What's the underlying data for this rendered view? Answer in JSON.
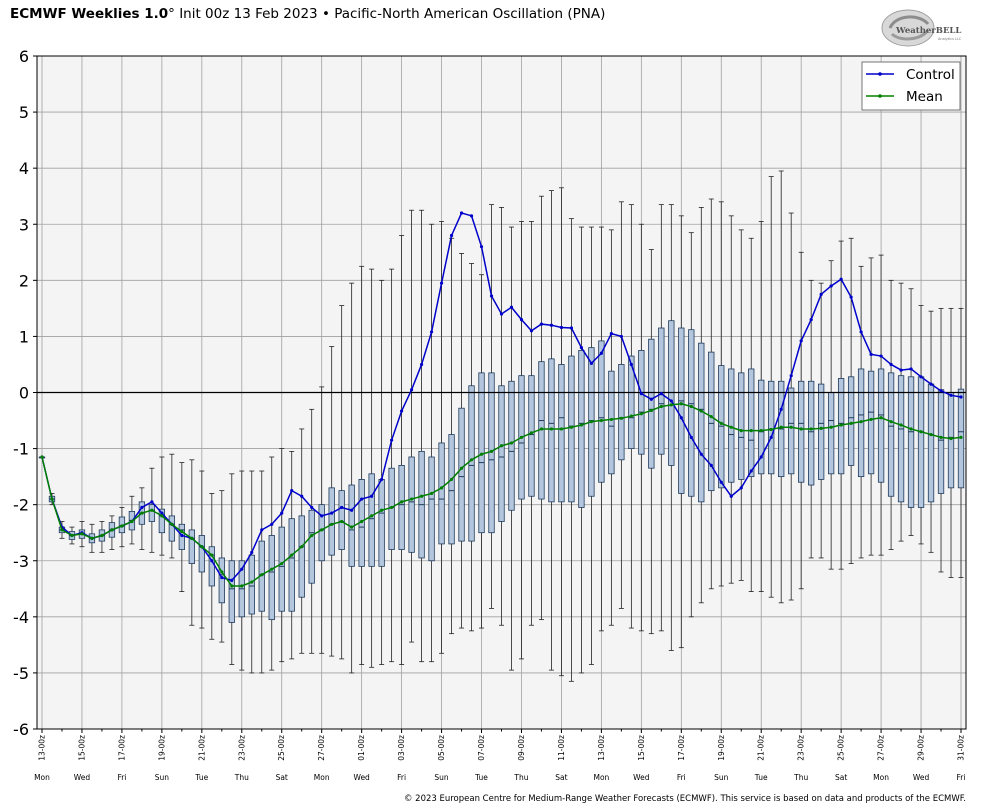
{
  "header": {
    "model": "ECMWF Weeklies 1.0",
    "degree": "°",
    "init": "Init 00z 13 Feb 2023",
    "bullet": "•",
    "index": "Pacific-North American Oscillation (PNA)"
  },
  "logo": {
    "text": "WeatherBELL",
    "subtext": "Analytics LLC"
  },
  "footer": "© 2023 European Centre for Medium-Range Weather Forecasts (ECMWF). This service is based on data and products of the ECMWF.",
  "colors": {
    "control": "#0000cc",
    "mean": "#008000",
    "box_fill": "#b3c6de",
    "box_edge": "#1f3b5c",
    "plot_bg": "#f4f4f4",
    "grid": "#a0a0a0"
  },
  "chart_data": {
    "type": "box",
    "title": "",
    "ylim": [
      -6,
      6
    ],
    "yticks": [
      "6",
      "5",
      "4",
      "3",
      "2",
      "1",
      "0",
      "-1",
      "-2",
      "-3",
      "-4",
      "-5",
      "-6"
    ],
    "zero_line": true,
    "grid": true,
    "legend_position": "top-right",
    "xlim": [
      0,
      92
    ],
    "x_date_labels": [
      "13-00z",
      "15-00z",
      "17-00z",
      "19-00z",
      "21-00z",
      "23-00z",
      "25-00z",
      "27-00z",
      "01-00z",
      "03-00z",
      "05-00z",
      "07-00z",
      "09-00z",
      "11-00z",
      "13-00z",
      "15-00z",
      "17-00z",
      "19-00z",
      "21-00z",
      "23-00z",
      "25-00z",
      "27-00z",
      "29-00z",
      "31-00z"
    ],
    "x_day_labels": [
      "Mon",
      "Wed",
      "Fri",
      "Sun",
      "Tue",
      "Thu",
      "Sat",
      "Mon",
      "Wed",
      "Fri",
      "Sun",
      "Tue",
      "Thu",
      "Sat",
      "Mon",
      "Wed",
      "Fri",
      "Sun",
      "Tue",
      "Thu",
      "Sat",
      "Mon",
      "Wed",
      "Fri"
    ],
    "series": [
      {
        "name": "Control",
        "x": [
          0,
          1,
          2,
          3,
          4,
          5,
          6,
          7,
          8,
          9,
          10,
          11,
          12,
          13,
          14,
          15,
          16,
          17,
          18,
          19,
          20,
          21,
          22,
          23,
          24,
          25,
          26,
          27,
          28,
          29,
          30,
          31,
          32,
          33,
          34,
          35,
          36,
          37,
          38,
          39,
          40,
          41,
          42,
          43,
          44,
          45,
          46,
          47,
          48,
          49,
          50,
          51,
          52,
          53,
          54,
          55,
          56,
          57,
          58,
          59,
          60,
          61,
          62,
          63,
          64,
          65,
          66,
          67,
          68,
          69,
          70,
          71,
          72,
          73,
          74,
          75,
          76,
          77,
          78,
          79,
          80,
          81,
          82,
          83,
          84,
          85,
          86,
          87,
          88,
          89,
          90,
          91,
          92
        ],
        "values": [
          -1.15,
          -1.9,
          -2.4,
          -2.55,
          -2.5,
          -2.6,
          -2.55,
          -2.45,
          -2.38,
          -2.3,
          -2.05,
          -1.95,
          -2.15,
          -2.35,
          -2.55,
          -2.6,
          -2.75,
          -3.0,
          -3.3,
          -3.35,
          -3.15,
          -2.85,
          -2.45,
          -2.35,
          -2.15,
          -1.75,
          -1.85,
          -2.05,
          -2.2,
          -2.15,
          -2.05,
          -2.1,
          -1.9,
          -1.85,
          -1.55,
          -0.85,
          -0.33,
          0.05,
          0.5,
          1.08,
          1.95,
          2.8,
          3.2,
          3.15,
          2.6,
          1.72,
          1.4,
          1.52,
          1.3,
          1.1,
          1.22,
          1.2,
          1.16,
          1.15,
          0.8,
          0.52,
          0.7,
          1.05,
          1.0,
          0.5,
          -0.02,
          -0.12,
          -0.02,
          -0.15,
          -0.45,
          -0.8,
          -1.1,
          -1.3,
          -1.6,
          -1.85,
          -1.7,
          -1.4,
          -1.15,
          -0.8,
          -0.3,
          0.3,
          0.92,
          1.3,
          1.75,
          1.9,
          2.02,
          1.7,
          1.08,
          0.68,
          0.65,
          0.5,
          0.4,
          0.42,
          0.28,
          0.15,
          0.03,
          -0.05,
          -0.08
        ]
      },
      {
        "name": "Mean",
        "x": [
          0,
          1,
          2,
          3,
          4,
          5,
          6,
          7,
          8,
          9,
          10,
          11,
          12,
          13,
          14,
          15,
          16,
          17,
          18,
          19,
          20,
          21,
          22,
          23,
          24,
          25,
          26,
          27,
          28,
          29,
          30,
          31,
          32,
          33,
          34,
          35,
          36,
          37,
          38,
          39,
          40,
          41,
          42,
          43,
          44,
          45,
          46,
          47,
          48,
          49,
          50,
          51,
          52,
          53,
          54,
          55,
          56,
          57,
          58,
          59,
          60,
          61,
          62,
          63,
          64,
          65,
          66,
          67,
          68,
          69,
          70,
          71,
          72,
          73,
          74,
          75,
          76,
          77,
          78,
          79,
          80,
          81,
          82,
          83,
          84,
          85,
          86,
          87,
          88,
          89,
          90,
          91,
          92
        ],
        "values": [
          -1.15,
          -1.9,
          -2.45,
          -2.55,
          -2.52,
          -2.6,
          -2.55,
          -2.45,
          -2.38,
          -2.3,
          -2.15,
          -2.1,
          -2.2,
          -2.35,
          -2.48,
          -2.6,
          -2.75,
          -2.9,
          -3.2,
          -3.45,
          -3.45,
          -3.38,
          -3.25,
          -3.15,
          -3.05,
          -2.9,
          -2.75,
          -2.55,
          -2.45,
          -2.35,
          -2.3,
          -2.4,
          -2.3,
          -2.2,
          -2.1,
          -2.05,
          -1.95,
          -1.9,
          -1.85,
          -1.8,
          -1.7,
          -1.55,
          -1.35,
          -1.2,
          -1.1,
          -1.05,
          -0.95,
          -0.9,
          -0.8,
          -0.72,
          -0.65,
          -0.65,
          -0.65,
          -0.62,
          -0.58,
          -0.52,
          -0.5,
          -0.48,
          -0.46,
          -0.42,
          -0.38,
          -0.32,
          -0.25,
          -0.22,
          -0.2,
          -0.25,
          -0.33,
          -0.43,
          -0.55,
          -0.62,
          -0.68,
          -0.68,
          -0.68,
          -0.66,
          -0.62,
          -0.62,
          -0.65,
          -0.65,
          -0.64,
          -0.62,
          -0.58,
          -0.55,
          -0.52,
          -0.48,
          -0.45,
          -0.52,
          -0.58,
          -0.65,
          -0.7,
          -0.75,
          -0.8,
          -0.82,
          -0.8
        ]
      }
    ],
    "boxes": {
      "x": [
        0,
        1,
        2,
        3,
        4,
        5,
        6,
        7,
        8,
        9,
        10,
        11,
        12,
        13,
        14,
        15,
        16,
        17,
        18,
        19,
        20,
        21,
        22,
        23,
        24,
        25,
        26,
        27,
        28,
        29,
        30,
        31,
        32,
        33,
        34,
        35,
        36,
        37,
        38,
        39,
        40,
        41,
        42,
        43,
        44,
        45,
        46,
        47,
        48,
        49,
        50,
        51,
        52,
        53,
        54,
        55,
        56,
        57,
        58,
        59,
        60,
        61,
        62,
        63,
        64,
        65,
        66,
        67,
        68,
        69,
        70,
        71,
        72,
        73,
        74,
        75,
        76,
        77,
        78,
        79,
        80,
        81,
        82,
        83,
        84,
        85,
        86,
        87,
        88,
        89,
        90,
        91,
        92
      ],
      "q1": [
        -1.15,
        -1.95,
        -2.5,
        -2.62,
        -2.6,
        -2.68,
        -2.65,
        -2.58,
        -2.5,
        -2.45,
        -2.35,
        -2.3,
        -2.5,
        -2.65,
        -2.8,
        -3.05,
        -3.2,
        -3.45,
        -3.75,
        -4.1,
        -4.0,
        -3.95,
        -3.9,
        -4.05,
        -3.9,
        -3.9,
        -3.65,
        -3.4,
        -3.0,
        -2.9,
        -2.8,
        -3.1,
        -3.1,
        -3.1,
        -3.1,
        -2.8,
        -2.8,
        -2.85,
        -2.95,
        -3.0,
        -2.7,
        -2.7,
        -2.65,
        -2.65,
        -2.5,
        -2.5,
        -2.3,
        -2.1,
        -1.9,
        -1.85,
        -1.9,
        -1.95,
        -1.95,
        -1.95,
        -2.05,
        -1.85,
        -1.6,
        -1.45,
        -1.2,
        -1.0,
        -1.1,
        -1.35,
        -1.1,
        -1.3,
        -1.8,
        -1.85,
        -1.95,
        -1.75,
        -1.7,
        -1.6,
        -1.55,
        -1.5,
        -1.45,
        -1.45,
        -1.5,
        -1.45,
        -1.6,
        -1.65,
        -1.55,
        -1.45,
        -1.45,
        -1.3,
        -1.5,
        -1.45,
        -1.6,
        -1.85,
        -1.95,
        -2.05,
        -2.05,
        -1.95,
        -1.8,
        -1.7,
        -1.7
      ],
      "median": [
        -1.15,
        -1.9,
        -2.45,
        -2.55,
        -2.52,
        -2.6,
        -2.55,
        -2.45,
        -2.38,
        -2.28,
        -2.15,
        -2.1,
        -2.2,
        -2.35,
        -2.45,
        -2.6,
        -2.75,
        -2.9,
        -3.25,
        -3.5,
        -3.5,
        -3.45,
        -3.25,
        -3.2,
        -3.1,
        -2.95,
        -2.75,
        -2.5,
        -2.45,
        -2.35,
        -2.3,
        -2.45,
        -2.4,
        -2.25,
        -2.15,
        -2.05,
        -2.0,
        -1.95,
        -2.0,
        -1.9,
        -1.9,
        -1.75,
        -1.5,
        -1.3,
        -1.25,
        -1.2,
        -1.15,
        -1.05,
        -0.9,
        -0.75,
        -0.5,
        -0.55,
        -0.45,
        -0.6,
        -0.55,
        -0.5,
        -0.45,
        -0.6,
        -0.45,
        -0.45,
        -0.35,
        -0.3,
        -0.2,
        0.0,
        -0.15,
        -0.2,
        -0.3,
        -0.55,
        -0.6,
        -0.75,
        -0.8,
        -0.85,
        -0.7,
        -0.65,
        -0.65,
        -0.55,
        -0.55,
        -0.7,
        -0.55,
        -0.5,
        -0.55,
        -0.45,
        -0.4,
        -0.35,
        -0.4,
        -0.6,
        -0.65,
        -0.7,
        -0.7,
        -0.75,
        -0.85,
        -0.8,
        -0.7
      ],
      "q3": [
        -1.15,
        -1.85,
        -2.4,
        -2.48,
        -2.45,
        -2.52,
        -2.45,
        -2.32,
        -2.22,
        -2.12,
        -1.95,
        -2.0,
        -2.08,
        -2.2,
        -2.35,
        -2.45,
        -2.55,
        -2.75,
        -2.95,
        -3.0,
        -3.0,
        -2.9,
        -2.65,
        -2.55,
        -2.4,
        -2.25,
        -2.2,
        -2.1,
        -2.0,
        -1.7,
        -1.75,
        -1.65,
        -1.55,
        -1.45,
        -1.55,
        -1.35,
        -1.3,
        -1.15,
        -1.05,
        -1.15,
        -0.9,
        -0.75,
        -0.28,
        0.12,
        0.35,
        0.35,
        0.12,
        0.2,
        0.3,
        0.3,
        0.55,
        0.6,
        0.5,
        0.65,
        0.75,
        0.8,
        0.92,
        0.38,
        0.5,
        0.65,
        0.75,
        0.95,
        1.15,
        1.28,
        1.15,
        1.12,
        0.88,
        0.72,
        0.48,
        0.42,
        0.35,
        0.42,
        0.22,
        0.2,
        0.2,
        0.08,
        0.2,
        0.2,
        0.15,
        0.0,
        0.25,
        0.28,
        0.42,
        0.38,
        0.42,
        0.35,
        0.3,
        0.28,
        0.28,
        0.15,
        0.05,
        0.0,
        0.06
      ],
      "low": [
        -1.15,
        -2.0,
        -2.6,
        -2.7,
        -2.75,
        -2.85,
        -2.85,
        -2.8,
        -2.75,
        -2.7,
        -2.8,
        -2.85,
        -2.9,
        -2.95,
        -3.55,
        -4.15,
        -4.2,
        -4.4,
        -4.45,
        -4.85,
        -4.95,
        -5.0,
        -5.0,
        -4.95,
        -4.8,
        -4.75,
        -4.65,
        -4.65,
        -4.65,
        -4.7,
        -4.75,
        -5.0,
        -4.85,
        -4.9,
        -4.85,
        -4.8,
        -4.85,
        -4.45,
        -4.8,
        -4.8,
        -4.65,
        -4.3,
        -4.2,
        -4.25,
        -4.2,
        -3.85,
        -4.15,
        -4.95,
        -4.75,
        -4.15,
        -4.05,
        -4.95,
        -5.05,
        -5.15,
        -5.0,
        -4.85,
        -4.25,
        -4.15,
        -3.85,
        -4.2,
        -4.25,
        -4.3,
        -4.25,
        -4.6,
        -4.55,
        -4.0,
        -3.75,
        -3.5,
        -3.45,
        -3.4,
        -3.35,
        -3.55,
        -3.55,
        -3.65,
        -3.75,
        -3.7,
        -3.5,
        -2.95,
        -2.95,
        -3.15,
        -3.15,
        -3.05,
        -2.95,
        -2.9,
        -2.9,
        -2.8,
        -2.65,
        -2.55,
        -2.7,
        -2.85,
        -3.2,
        -3.3,
        -3.3
      ],
      "high": [
        -1.15,
        -1.8,
        -2.3,
        -2.4,
        -2.3,
        -2.35,
        -2.3,
        -2.2,
        -2.05,
        -1.85,
        -1.7,
        -1.35,
        -1.15,
        -1.1,
        -1.25,
        -1.2,
        -1.4,
        -1.8,
        -1.75,
        -1.45,
        -1.4,
        -1.4,
        -1.4,
        -1.15,
        -1.0,
        -1.05,
        -0.65,
        -0.3,
        0.1,
        0.82,
        1.55,
        1.95,
        2.25,
        2.2,
        2.0,
        2.2,
        2.8,
        3.25,
        3.25,
        3.0,
        3.05,
        2.75,
        2.48,
        2.3,
        2.1,
        3.35,
        3.3,
        2.95,
        3.05,
        3.05,
        3.5,
        3.6,
        3.65,
        3.1,
        2.95,
        2.95,
        2.95,
        2.9,
        3.4,
        3.35,
        3.0,
        2.55,
        3.35,
        3.35,
        3.15,
        2.85,
        3.3,
        3.45,
        3.4,
        3.15,
        2.9,
        2.75,
        3.05,
        3.85,
        3.95,
        3.2,
        2.5,
        2.0,
        1.95,
        2.35,
        2.7,
        2.75,
        2.25,
        2.4,
        2.45,
        2.0,
        1.95,
        1.85,
        1.55,
        1.45,
        1.5,
        1.5,
        1.5
      ]
    }
  }
}
